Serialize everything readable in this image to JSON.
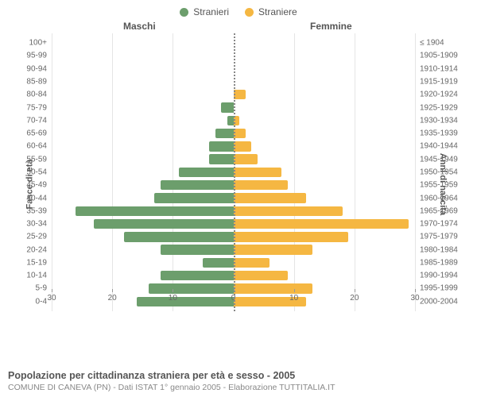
{
  "chart": {
    "type": "population-pyramid",
    "legend": {
      "male": "Stranieri",
      "female": "Straniere"
    },
    "header_male": "Maschi",
    "header_female": "Femmine",
    "y_left_title": "Fasce di età",
    "y_right_title": "Anni di nascita",
    "colors": {
      "male": "#6c9e6c",
      "female": "#f5b742",
      "grid": "#e5e5e5",
      "center": "#888888",
      "text": "#666666",
      "bg": "#ffffff"
    },
    "x_max": 30,
    "x_ticks": [
      "30",
      "20",
      "10",
      "0",
      "10",
      "20",
      "30"
    ],
    "x_tick_positions": [
      -30,
      -20,
      -10,
      0,
      10,
      20,
      30
    ],
    "rows": [
      {
        "age": "100+",
        "birth": "≤ 1904",
        "m": 0,
        "f": 0
      },
      {
        "age": "95-99",
        "birth": "1905-1909",
        "m": 0,
        "f": 0
      },
      {
        "age": "90-94",
        "birth": "1910-1914",
        "m": 0,
        "f": 0
      },
      {
        "age": "85-89",
        "birth": "1915-1919",
        "m": 0,
        "f": 0
      },
      {
        "age": "80-84",
        "birth": "1920-1924",
        "m": 0,
        "f": 2
      },
      {
        "age": "75-79",
        "birth": "1925-1929",
        "m": 2,
        "f": 0
      },
      {
        "age": "70-74",
        "birth": "1930-1934",
        "m": 1,
        "f": 1
      },
      {
        "age": "65-69",
        "birth": "1935-1939",
        "m": 3,
        "f": 2
      },
      {
        "age": "60-64",
        "birth": "1940-1944",
        "m": 4,
        "f": 3
      },
      {
        "age": "55-59",
        "birth": "1945-1949",
        "m": 4,
        "f": 4
      },
      {
        "age": "50-54",
        "birth": "1950-1954",
        "m": 9,
        "f": 8
      },
      {
        "age": "45-49",
        "birth": "1955-1959",
        "m": 12,
        "f": 9
      },
      {
        "age": "40-44",
        "birth": "1960-1964",
        "m": 13,
        "f": 12
      },
      {
        "age": "35-39",
        "birth": "1965-1969",
        "m": 26,
        "f": 18
      },
      {
        "age": "30-34",
        "birth": "1970-1974",
        "m": 23,
        "f": 29
      },
      {
        "age": "25-29",
        "birth": "1975-1979",
        "m": 18,
        "f": 19
      },
      {
        "age": "20-24",
        "birth": "1980-1984",
        "m": 12,
        "f": 13
      },
      {
        "age": "15-19",
        "birth": "1985-1989",
        "m": 5,
        "f": 6
      },
      {
        "age": "10-14",
        "birth": "1990-1994",
        "m": 12,
        "f": 9
      },
      {
        "age": "5-9",
        "birth": "1995-1999",
        "m": 14,
        "f": 13
      },
      {
        "age": "0-4",
        "birth": "2000-2004",
        "m": 16,
        "f": 12
      }
    ],
    "footer_title": "Popolazione per cittadinanza straniera per età e sesso - 2005",
    "footer_sub": "COMUNE DI CANEVA (PN) - Dati ISTAT 1° gennaio 2005 - Elaborazione TUTTITALIA.IT",
    "font_sizes": {
      "legend": 12,
      "header": 12,
      "axis_title": 11,
      "tick": 10,
      "footer_title": 12.5,
      "footer_sub": 10.5
    }
  }
}
